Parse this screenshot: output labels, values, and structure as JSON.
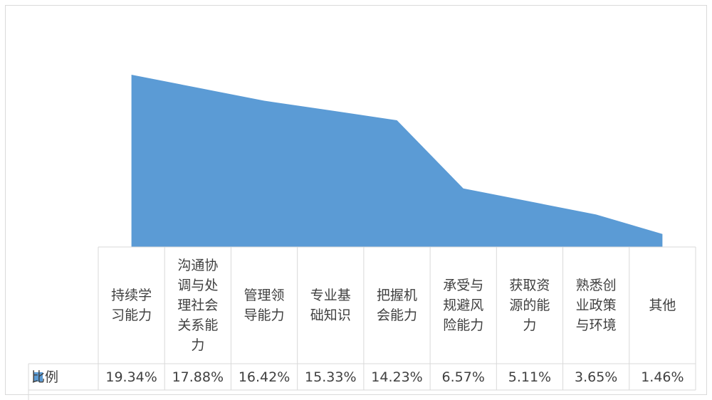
{
  "chart_data": {
    "type": "area",
    "categories": [
      "持续学习能力",
      "沟通协调与处理社会关系能力",
      "管理领导能力",
      "专业基础知识",
      "把握机会能力",
      "承受与规避风险能力",
      "获取资源的能力",
      "熟悉创业政策与环境",
      "其他"
    ],
    "series": [
      {
        "name": "比例",
        "color": "#5b9bd5",
        "values": [
          19.34,
          17.88,
          16.42,
          15.33,
          14.23,
          6.57,
          5.11,
          3.65,
          1.46
        ],
        "value_labels": [
          "19.34%",
          "17.88%",
          "16.42%",
          "15.33%",
          "14.23%",
          "6.57%",
          "5.11%",
          "3.65%",
          "1.46%"
        ]
      }
    ]
  }
}
